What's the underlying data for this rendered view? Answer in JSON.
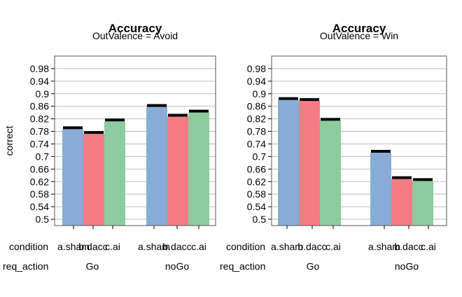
{
  "chart_data": [
    {
      "type": "bar",
      "title": "Accuracy",
      "subtitle": "OutValence = Avoid",
      "ylabel": "correct",
      "ylim": [
        0.48,
        1.02
      ],
      "yticks": [
        "0.5",
        "0.54",
        "0.58",
        "0.62",
        "0.66",
        "0.7",
        "0.74",
        "0.78",
        "0.82",
        "0.86",
        "0.9",
        "0.94",
        "0.98"
      ],
      "factor_labels": [
        "condition",
        "req_action"
      ],
      "groups": [
        "Go",
        "noGo"
      ],
      "categories": [
        "a.sham",
        "b.dacc",
        "c.ai"
      ],
      "series": [
        {
          "group": "Go",
          "values": [
            0.787,
            0.772,
            0.812
          ]
        },
        {
          "group": "noGo",
          "values": [
            0.858,
            0.827,
            0.84
          ]
        }
      ],
      "grid": true
    },
    {
      "type": "bar",
      "title": "Accuracy",
      "subtitle": "OutValence = Win",
      "ylabel": "",
      "ylim": [
        0.48,
        1.02
      ],
      "yticks": [
        "0.5",
        "0.54",
        "0.58",
        "0.62",
        "0.66",
        "0.7",
        "0.74",
        "0.78",
        "0.82",
        "0.86",
        "0.9",
        "0.94",
        "0.98"
      ],
      "factor_labels": [
        "condition",
        "req_action"
      ],
      "groups": [
        "Go",
        "noGo"
      ],
      "categories": [
        "a.sham",
        "b.dacc",
        "c.ai"
      ],
      "series": [
        {
          "group": "Go",
          "values": [
            0.88,
            0.877,
            0.814
          ]
        },
        {
          "group": "noGo",
          "values": [
            0.712,
            0.628,
            0.622
          ]
        }
      ],
      "grid": true
    }
  ],
  "colors": [
    "#88acd7",
    "#f47b86",
    "#8ccc9d"
  ]
}
